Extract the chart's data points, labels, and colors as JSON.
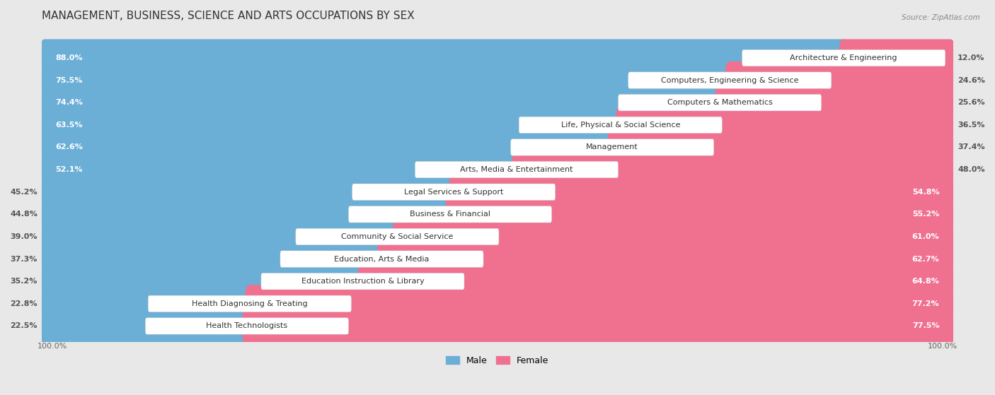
{
  "title": "MANAGEMENT, BUSINESS, SCIENCE AND ARTS OCCUPATIONS BY SEX",
  "source": "Source: ZipAtlas.com",
  "categories": [
    "Architecture & Engineering",
    "Computers, Engineering & Science",
    "Computers & Mathematics",
    "Life, Physical & Social Science",
    "Management",
    "Arts, Media & Entertainment",
    "Legal Services & Support",
    "Business & Financial",
    "Community & Social Service",
    "Education, Arts & Media",
    "Education Instruction & Library",
    "Health Diagnosing & Treating",
    "Health Technologists"
  ],
  "male": [
    88.0,
    75.5,
    74.4,
    63.5,
    62.6,
    52.1,
    45.2,
    44.8,
    39.0,
    37.3,
    35.2,
    22.8,
    22.5
  ],
  "female": [
    12.0,
    24.6,
    25.6,
    36.5,
    37.4,
    48.0,
    54.8,
    55.2,
    61.0,
    62.7,
    64.8,
    77.2,
    77.5
  ],
  "male_color": "#6BAED6",
  "female_color": "#F07090",
  "bg_color": "#e8e8e8",
  "row_bg_light": "#f5f5f5",
  "row_bg_white": "#ffffff",
  "title_fontsize": 11,
  "label_fontsize": 8,
  "bar_label_fontsize": 8,
  "legend_fontsize": 9,
  "axis_label_fontsize": 8
}
